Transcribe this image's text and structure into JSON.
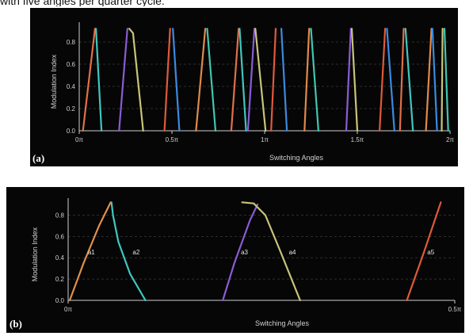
{
  "caption": "with five angles per quarter cycle.",
  "chart_data": [
    {
      "type": "line",
      "panel_label": "(a)",
      "xlabel": "Switching Angles",
      "ylabel": "Modulation Index",
      "xlim_pi": [
        0,
        2
      ],
      "ylim": [
        0,
        0.95
      ],
      "x_ticks": [
        {
          "value_pi": 0,
          "label": "0π"
        },
        {
          "value_pi": 0.5,
          "label": "0.5π"
        },
        {
          "value_pi": 1,
          "label": "1π"
        },
        {
          "value_pi": 1.5,
          "label": "1.5π"
        },
        {
          "value_pi": 2,
          "label": "2π"
        }
      ],
      "y_ticks": [
        {
          "value": 0,
          "label": "0.0"
        },
        {
          "value": 0.2,
          "label": "0.2"
        },
        {
          "value": 0.4,
          "label": "0.4"
        },
        {
          "value": 0.6,
          "label": "0.6"
        },
        {
          "value": 0.8,
          "label": "0.8"
        }
      ],
      "grid": true,
      "series": [
        {
          "color": "#e0704a",
          "x_pi": [
            0.02,
            0.085
          ],
          "m": [
            0.0,
            0.92
          ]
        },
        {
          "color": "#3fc7c0",
          "x_pi": [
            0.09,
            0.12
          ],
          "m": [
            0.92,
            0.0
          ]
        },
        {
          "color": "#8a5cd6",
          "x_pi": [
            0.215,
            0.26
          ],
          "m": [
            0.0,
            0.92
          ]
        },
        {
          "color": "#c9c47a",
          "x_pi": [
            0.27,
            0.29,
            0.345
          ],
          "m": [
            0.92,
            0.88,
            0.0
          ]
        },
        {
          "color": "#e05a3a",
          "x_pi": [
            0.46,
            0.49
          ],
          "m": [
            0.0,
            0.92
          ]
        },
        {
          "color": "#3a8be0",
          "x_pi": [
            0.505,
            0.54
          ],
          "m": [
            0.92,
            0.0
          ]
        },
        {
          "color": "#e08a4a",
          "x_pi": [
            0.63,
            0.68
          ],
          "m": [
            0.0,
            0.92
          ]
        },
        {
          "color": "#3fc7b0",
          "x_pi": [
            0.69,
            0.735
          ],
          "m": [
            0.92,
            0.0
          ]
        },
        {
          "color": "#e0704a",
          "x_pi": [
            0.82,
            0.86
          ],
          "m": [
            0.0,
            0.92
          ]
        },
        {
          "color": "#3fc7c0",
          "x_pi": [
            0.865,
            0.9
          ],
          "m": [
            0.92,
            0.0
          ]
        },
        {
          "color": "#8a5cd6",
          "x_pi": [
            0.91,
            0.945
          ],
          "m": [
            0.0,
            0.92
          ]
        },
        {
          "color": "#c9c47a",
          "x_pi": [
            0.95,
            1.005
          ],
          "m": [
            0.92,
            0.0
          ]
        },
        {
          "color": "#e05a3a",
          "x_pi": [
            1.035,
            1.06
          ],
          "m": [
            0.0,
            0.92
          ]
        },
        {
          "color": "#3a8be0",
          "x_pi": [
            1.09,
            1.12
          ],
          "m": [
            0.92,
            0.0
          ]
        },
        {
          "color": "#e08a4a",
          "x_pi": [
            1.215,
            1.24
          ],
          "m": [
            0.0,
            0.92
          ]
        },
        {
          "color": "#3fc7b0",
          "x_pi": [
            1.25,
            1.29
          ],
          "m": [
            0.92,
            0.0
          ]
        },
        {
          "color": "#8a5cd6",
          "x_pi": [
            1.44,
            1.465
          ],
          "m": [
            0.0,
            0.92
          ]
        },
        {
          "color": "#c9c47a",
          "x_pi": [
            1.47,
            1.5
          ],
          "m": [
            0.92,
            0.0
          ]
        },
        {
          "color": "#e05a3a",
          "x_pi": [
            1.62,
            1.65
          ],
          "m": [
            0.0,
            0.92
          ]
        },
        {
          "color": "#3a8be0",
          "x_pi": [
            1.66,
            1.7
          ],
          "m": [
            0.92,
            0.0
          ]
        },
        {
          "color": "#e0704a",
          "x_pi": [
            1.73,
            1.75
          ],
          "m": [
            0.0,
            0.92
          ]
        },
        {
          "color": "#3fc7c0",
          "x_pi": [
            1.76,
            1.8
          ],
          "m": [
            0.92,
            0.0
          ]
        },
        {
          "color": "#e08a4a",
          "x_pi": [
            1.87,
            1.9
          ],
          "m": [
            0.0,
            0.92
          ]
        },
        {
          "color": "#3a8be0",
          "x_pi": [
            1.905,
            1.93
          ],
          "m": [
            0.92,
            0.0
          ]
        },
        {
          "color": "#c9c47a",
          "x_pi": [
            1.955,
            1.96
          ],
          "m": [
            0.0,
            0.92
          ]
        },
        {
          "color": "#3fc7b0",
          "x_pi": [
            1.97,
            1.99
          ],
          "m": [
            0.92,
            0.0
          ]
        }
      ]
    },
    {
      "type": "line",
      "panel_label": "(b)",
      "xlabel": "Switching Angles",
      "ylabel": "Modulation Index",
      "xlim_pi": [
        0,
        0.5
      ],
      "ylim": [
        0,
        0.93
      ],
      "x_ticks": [
        {
          "value_pi": 0,
          "label": "0π"
        },
        {
          "value_pi": 0.5,
          "label": "0.5π"
        }
      ],
      "y_ticks": [
        {
          "value": 0,
          "label": "0.0"
        },
        {
          "value": 0.2,
          "label": "0.2"
        },
        {
          "value": 0.4,
          "label": "0.4"
        },
        {
          "value": 0.6,
          "label": "0.6"
        },
        {
          "value": 0.8,
          "label": "0.8"
        }
      ],
      "grid": true,
      "series": [
        {
          "name": "a1",
          "color": "#e0904a",
          "x_pi": [
            0.002,
            0.02,
            0.04,
            0.055
          ],
          "m": [
            0.0,
            0.35,
            0.7,
            0.92
          ],
          "label_at": [
            0.03,
            0.43
          ]
        },
        {
          "name": "a2",
          "color": "#3fc7c0",
          "x_pi": [
            0.056,
            0.058,
            0.065,
            0.08,
            0.1
          ],
          "m": [
            0.92,
            0.8,
            0.55,
            0.25,
            0.0
          ],
          "label_at": [
            0.088,
            0.43
          ]
        },
        {
          "name": "a3",
          "color": "#8a5cd6",
          "x_pi": [
            0.2,
            0.215,
            0.235,
            0.245
          ],
          "m": [
            0.0,
            0.35,
            0.75,
            0.9
          ],
          "label_at": [
            0.228,
            0.43
          ]
        },
        {
          "name": "a4",
          "color": "#c9c47a",
          "x_pi": [
            0.225,
            0.24,
            0.255,
            0.275,
            0.3
          ],
          "m": [
            0.92,
            0.91,
            0.8,
            0.45,
            0.0
          ],
          "label_at": [
            0.29,
            0.43
          ]
        },
        {
          "name": "a5",
          "color": "#e05a3a",
          "x_pi": [
            0.438,
            0.46,
            0.482
          ],
          "m": [
            0.0,
            0.45,
            0.92
          ],
          "label_at": [
            0.469,
            0.43
          ]
        }
      ]
    }
  ]
}
